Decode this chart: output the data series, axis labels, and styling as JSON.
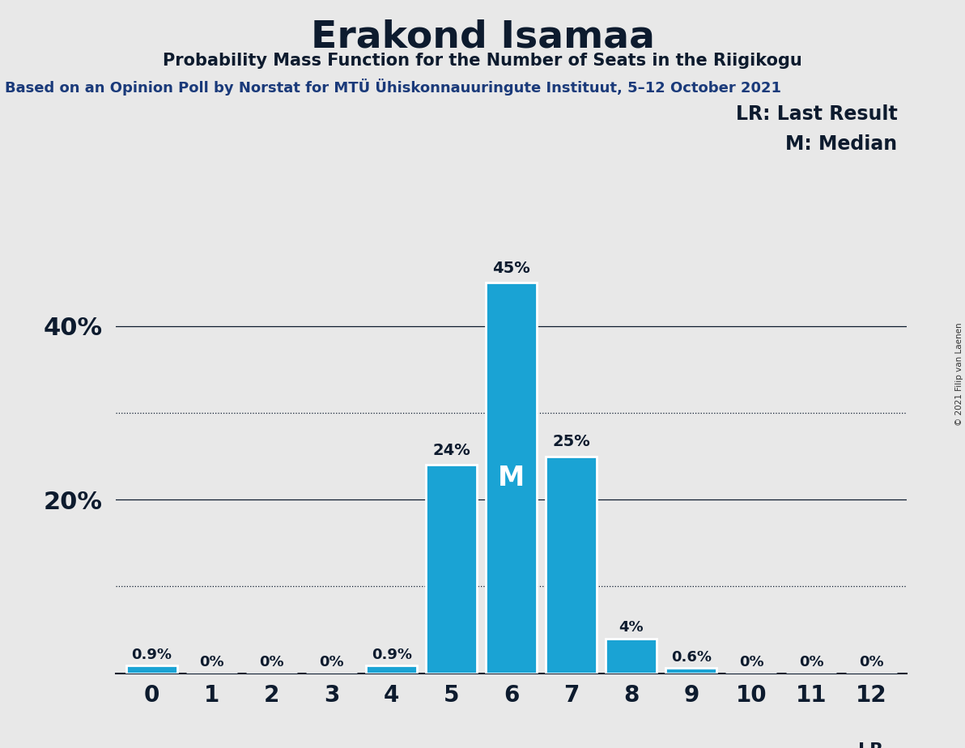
{
  "title": "Erakond Isamaa",
  "subtitle": "Probability Mass Function for the Number of Seats in the Riigikogu",
  "source_line": "Based on an Opinion Poll by Norstat for MTÜ Ühiskonnauuringute Instituut, 5–12 October 2021",
  "copyright": "© 2021 Filip van Laenen",
  "categories": [
    0,
    1,
    2,
    3,
    4,
    5,
    6,
    7,
    8,
    9,
    10,
    11,
    12
  ],
  "values": [
    0.9,
    0.0,
    0.0,
    0.0,
    0.9,
    24.0,
    45.0,
    25.0,
    4.0,
    0.6,
    0.0,
    0.0,
    0.0
  ],
  "bar_color": "#1aa3d4",
  "background_color": "#e8e8e8",
  "text_color": "#0d1b2e",
  "median_bar": 6,
  "lr_bar": 12,
  "ylim": [
    0,
    50
  ],
  "yticks": [
    20,
    40
  ],
  "ytick_labels": [
    "20%",
    "40%"
  ],
  "solid_grid_lines": [
    20,
    40
  ],
  "dotted_grid_lines": [
    10,
    30
  ],
  "legend_lr": "LR: Last Result",
  "legend_m": "M: Median",
  "lr_label": "LR",
  "m_label": "M",
  "bar_labels": [
    "0.9%",
    "0%",
    "0%",
    "0%",
    "0.9%",
    "24%",
    "45%",
    "25%",
    "4%",
    "0.6%",
    "0%",
    "0%",
    "0%"
  ],
  "label_above_threshold": 5.0,
  "label_fontsize": 14,
  "title_fontsize": 34,
  "subtitle_fontsize": 15,
  "source_fontsize": 13,
  "ytick_fontsize": 22,
  "xtick_fontsize": 20,
  "legend_fontsize": 17,
  "m_text_fontsize": 24
}
